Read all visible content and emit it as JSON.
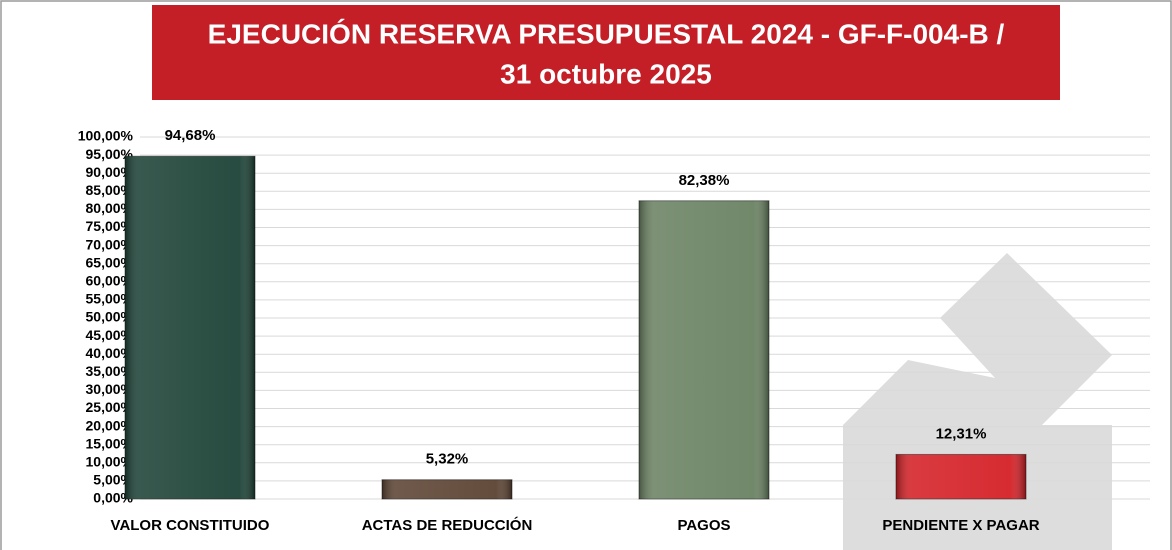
{
  "chart_data": {
    "type": "bar",
    "title": [
      "EJECUCIÓN RESERVA PRESUPUESTAL 2024 - GF-F-004-B /",
      "31 octubre 2025"
    ],
    "categories": [
      "VALOR CONSTITUIDO",
      "ACTAS DE REDUCCIÓN",
      "PAGOS",
      "PENDIENTE X PAGAR"
    ],
    "values": [
      94.68,
      5.32,
      82.38,
      12.31
    ],
    "value_labels": [
      "94,68%",
      "5,32%",
      "82,38%",
      "12,31%"
    ],
    "colors": [
      "#1c4236",
      "#5c4332",
      "#6a8262",
      "#d42026"
    ],
    "ylim": [
      0,
      100
    ],
    "yticks": [
      {
        "value": 0,
        "label": "0,00%"
      },
      {
        "value": 5,
        "label": "5,00%"
      },
      {
        "value": 10,
        "label": "10,00%"
      },
      {
        "value": 15,
        "label": "15,00%"
      },
      {
        "value": 20,
        "label": "20,00%"
      },
      {
        "value": 25,
        "label": "25,00%"
      },
      {
        "value": 30,
        "label": "30,00%"
      },
      {
        "value": 35,
        "label": "35,00%"
      },
      {
        "value": 40,
        "label": "40,00%"
      },
      {
        "value": 45,
        "label": "45,00%"
      },
      {
        "value": 50,
        "label": "50,00%"
      },
      {
        "value": 55,
        "label": "55,00%"
      },
      {
        "value": 60,
        "label": "60,00%"
      },
      {
        "value": 65,
        "label": "65,00%"
      },
      {
        "value": 70,
        "label": "70,00%"
      },
      {
        "value": 75,
        "label": "75,00%"
      },
      {
        "value": 80,
        "label": "80,00%"
      },
      {
        "value": 85,
        "label": "85,00%"
      },
      {
        "value": 90,
        "label": "90,00%"
      },
      {
        "value": 95,
        "label": "95,00%"
      },
      {
        "value": 100,
        "label": "100,00%"
      }
    ],
    "grid": true
  }
}
